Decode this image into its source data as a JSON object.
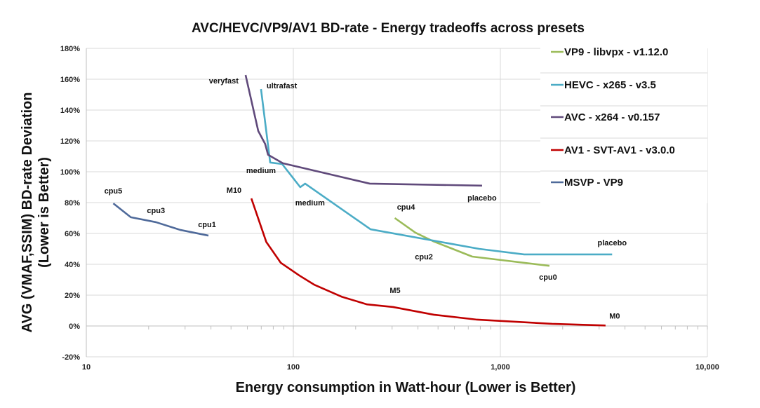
{
  "chart_data": {
    "type": "line",
    "title": "AVC/HEVC/VP9/AV1 BD-rate - Energy tradeoffs across presets",
    "xlabel": "Energy consumption in Watt-hour (Lower is Better)",
    "ylabel": [
      "AVG (VMAF,SSIM) BD-rate Deviation",
      "(Lower is Better)"
    ],
    "xscale": "log",
    "xlim": [
      10,
      10000
    ],
    "ylim": [
      -20,
      180
    ],
    "x_ticks": [
      {
        "v": 10,
        "label": "10"
      },
      {
        "v": 100,
        "label": "100"
      },
      {
        "v": 1000,
        "label": "1,000"
      },
      {
        "v": 10000,
        "label": "10,000"
      }
    ],
    "y_ticks": [
      {
        "v": -20,
        "label": "-20%"
      },
      {
        "v": 0,
        "label": "0%"
      },
      {
        "v": 20,
        "label": "20%"
      },
      {
        "v": 40,
        "label": "40%"
      },
      {
        "v": 60,
        "label": "60%"
      },
      {
        "v": 80,
        "label": "80%"
      },
      {
        "v": 100,
        "label": "100%"
      },
      {
        "v": 120,
        "label": "120%"
      },
      {
        "v": 140,
        "label": "140%"
      },
      {
        "v": 160,
        "label": "160%"
      },
      {
        "v": 180,
        "label": "180%"
      }
    ],
    "grid": true,
    "legend": "right",
    "series": [
      {
        "name": "VP9 - libvpx - v1.12.0",
        "color": "#9bbb59",
        "points": [
          [
            309,
            70
          ],
          [
            389,
            60.5
          ],
          [
            473,
            55
          ],
          [
            731,
            45
          ],
          [
            1726,
            39
          ]
        ]
      },
      {
        "name": "HEVC - x265 - v3.5",
        "color": "#4bacc6",
        "points": [
          [
            69.8,
            153.6
          ],
          [
            77.3,
            106
          ],
          [
            88.3,
            105
          ],
          [
            108,
            90
          ],
          [
            114,
            92.3
          ],
          [
            236,
            62.7
          ],
          [
            790,
            50
          ],
          [
            1303,
            46.4
          ],
          [
            3467,
            46.4
          ]
        ]
      },
      {
        "name": "AVC - x264 - v0.157",
        "color": "#604a7b",
        "points": [
          [
            58.8,
            162.7
          ],
          [
            67.7,
            126.4
          ],
          [
            73.1,
            118
          ],
          [
            75.5,
            111
          ],
          [
            89,
            105.5
          ],
          [
            234,
            92.3
          ],
          [
            816,
            91
          ]
        ]
      },
      {
        "name": "AV1 - SVT-AV1 - v3.0.0",
        "color": "#c00000",
        "points": [
          [
            62.7,
            82.7
          ],
          [
            74,
            54.5
          ],
          [
            86.9,
            41
          ],
          [
            107,
            32.7
          ],
          [
            126,
            26.8
          ],
          [
            171,
            19
          ],
          [
            227,
            14
          ],
          [
            303,
            12.3
          ],
          [
            477,
            7.3
          ],
          [
            773,
            4.1
          ],
          [
            1778,
            1.4
          ],
          [
            3222,
            0.3
          ]
        ]
      },
      {
        "name": "MSVP - VP9",
        "color": "#4f6a9a",
        "points": [
          [
            13.5,
            79.5
          ],
          [
            16.4,
            70.5
          ],
          [
            21.7,
            67.3
          ],
          [
            28.4,
            62.3
          ],
          [
            38.9,
            58.6
          ]
        ]
      }
    ],
    "annotations": [
      {
        "text": "veryfast",
        "x": 58.8,
        "y": 162.7
      },
      {
        "text": "ultrafast",
        "x": 69.8,
        "y": 153.6
      },
      {
        "text": "medium",
        "x": 75.5,
        "y": 111
      },
      {
        "text": "medium",
        "x": 114,
        "y": 92.3
      },
      {
        "text": "placebo",
        "x": 816,
        "y": 91
      },
      {
        "text": "cpu5",
        "x": 13.5,
        "y": 79.5
      },
      {
        "text": "cpu3",
        "x": 21.7,
        "y": 67.3
      },
      {
        "text": "cpu1",
        "x": 38.9,
        "y": 58.6
      },
      {
        "text": "M10",
        "x": 62.7,
        "y": 82.7
      },
      {
        "text": "cpu4",
        "x": 309,
        "y": 70
      },
      {
        "text": "cpu2",
        "x": 473,
        "y": 55
      },
      {
        "text": "cpu0",
        "x": 1726,
        "y": 39
      },
      {
        "text": "placebo",
        "x": 3467,
        "y": 46.4
      },
      {
        "text": "M5",
        "x": 303,
        "y": 12.3
      },
      {
        "text": "M0",
        "x": 3222,
        "y": 0.3
      }
    ]
  }
}
